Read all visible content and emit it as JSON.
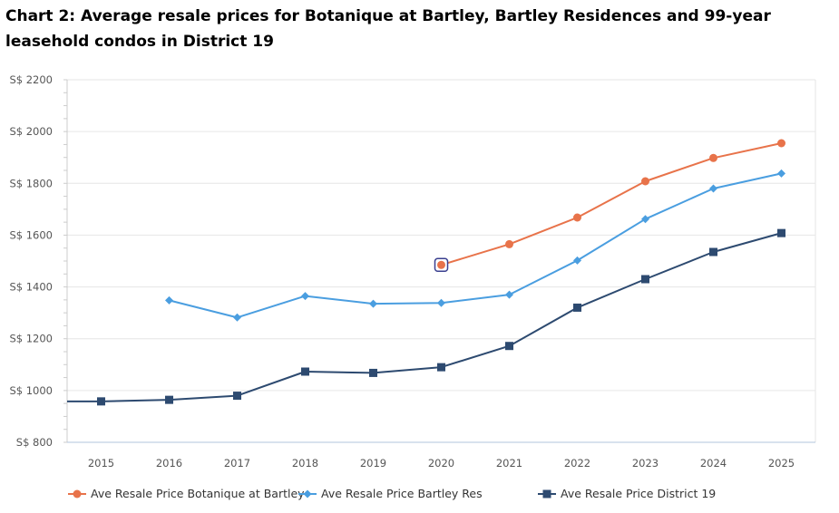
{
  "title": "Chart 2: Average resale prices for Botanique at Bartley, Bartley Residences and 99-year leasehold condos in District 19",
  "chart_data": {
    "type": "line",
    "x": [
      2015,
      2016,
      2017,
      2018,
      2019,
      2020,
      2021,
      2022,
      2023,
      2024,
      2025
    ],
    "x_tick_labels": [
      "2015",
      "2016",
      "2017",
      "2018",
      "2019",
      "2020",
      "2021",
      "2022",
      "2023",
      "2024",
      "2025"
    ],
    "y_tick_labels": [
      "S$ 800",
      "S$ 1000",
      "S$ 1200",
      "S$ 1400",
      "S$ 1600",
      "S$ 1800",
      "S$ 2000",
      "S$ 2200"
    ],
    "y_ticks": [
      800,
      1000,
      1200,
      1400,
      1600,
      1800,
      2000,
      2200
    ],
    "ylim": [
      800,
      2200
    ],
    "grid": true,
    "legend_position": "bottom",
    "series": [
      {
        "name": "Ave Resale Price Botanique at Bartley",
        "color": "#e8734a",
        "marker": "circle",
        "values": [
          null,
          null,
          null,
          null,
          null,
          1485,
          1565,
          1668,
          1808,
          1898,
          1955
        ]
      },
      {
        "name": "Ave Resale Price Bartley Res",
        "color": "#4a9ee0",
        "marker": "diamond",
        "values": [
          null,
          1348,
          1282,
          1365,
          1335,
          1338,
          1370,
          1502,
          1662,
          1780,
          1838
        ]
      },
      {
        "name": "Ave Resale Price District 19",
        "color": "#2d4a70",
        "marker": "square",
        "values": [
          958,
          964,
          980,
          1073,
          1068,
          1090,
          1172,
          1320,
          1430,
          1535,
          1608
        ]
      }
    ],
    "highlighted_point": {
      "series": 0,
      "x": 2020
    }
  }
}
